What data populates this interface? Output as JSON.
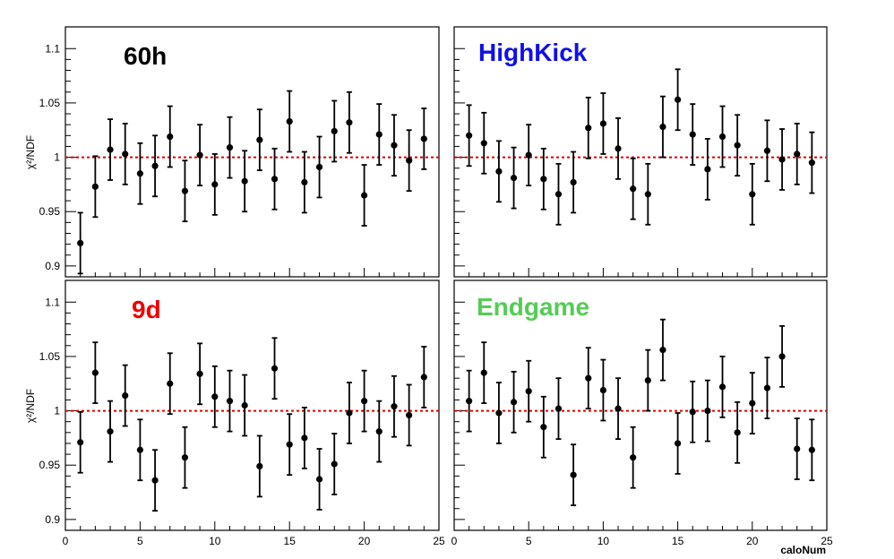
{
  "chart_data": [
    {
      "type": "scatter",
      "title": "60h",
      "title_color": "#000000",
      "ylabel": "χ²/NDF",
      "xlabel": "",
      "xlim": [
        0,
        25
      ],
      "ylim": [
        0.89,
        1.12
      ],
      "reference_line": {
        "y": 1,
        "color": "#e00000",
        "style": "dotted"
      },
      "x": [
        1,
        2,
        3,
        4,
        5,
        6,
        7,
        8,
        9,
        10,
        11,
        12,
        13,
        14,
        15,
        16,
        17,
        18,
        19,
        20,
        21,
        22,
        23,
        24
      ],
      "y": [
        0.921,
        0.973,
        1.007,
        1.003,
        0.985,
        0.992,
        1.019,
        0.969,
        1.002,
        0.975,
        1.009,
        0.978,
        1.016,
        0.98,
        1.033,
        0.977,
        0.991,
        1.024,
        1.032,
        0.965,
        1.021,
        1.011,
        0.997,
        1.017
      ],
      "err": [
        0.028,
        0.028,
        0.028,
        0.028,
        0.028,
        0.028,
        0.028,
        0.028,
        0.028,
        0.028,
        0.028,
        0.028,
        0.028,
        0.028,
        0.028,
        0.028,
        0.028,
        0.028,
        0.028,
        0.028,
        0.028,
        0.028,
        0.028,
        0.028
      ]
    },
    {
      "type": "scatter",
      "title": "HighKick",
      "title_color": "#1010e8",
      "ylabel": "",
      "xlabel": "caloNum",
      "xlim": [
        0,
        25
      ],
      "ylim": [
        0.89,
        1.12
      ],
      "reference_line": {
        "y": 1,
        "color": "#e00000",
        "style": "dotted"
      },
      "x": [
        1,
        2,
        3,
        4,
        5,
        6,
        7,
        8,
        9,
        10,
        11,
        12,
        13,
        14,
        15,
        16,
        17,
        18,
        19,
        20,
        21,
        22,
        23,
        24
      ],
      "y": [
        1.02,
        1.013,
        0.987,
        0.981,
        1.002,
        0.98,
        0.966,
        0.977,
        1.027,
        1.031,
        1.008,
        0.971,
        0.966,
        1.028,
        1.053,
        1.021,
        0.989,
        1.019,
        1.011,
        0.966,
        1.006,
        0.998,
        1.003,
        0.995
      ],
      "err": [
        0.028,
        0.028,
        0.028,
        0.028,
        0.028,
        0.028,
        0.028,
        0.028,
        0.028,
        0.028,
        0.028,
        0.028,
        0.028,
        0.028,
        0.028,
        0.028,
        0.028,
        0.028,
        0.028,
        0.028,
        0.028,
        0.028,
        0.028,
        0.028
      ]
    },
    {
      "type": "scatter",
      "title": "9d",
      "title_color": "#f00000",
      "ylabel": "χ²/NDF",
      "xlabel": "",
      "xlim": [
        0,
        25
      ],
      "ylim": [
        0.89,
        1.12
      ],
      "reference_line": {
        "y": 1,
        "color": "#e00000",
        "style": "dotted"
      },
      "x": [
        1,
        2,
        3,
        4,
        5,
        6,
        7,
        8,
        9,
        10,
        11,
        12,
        13,
        14,
        15,
        16,
        17,
        18,
        19,
        20,
        21,
        22,
        23,
        24
      ],
      "y": [
        0.971,
        1.035,
        0.981,
        1.014,
        0.964,
        0.936,
        1.025,
        0.957,
        1.034,
        1.013,
        1.009,
        1.005,
        0.949,
        1.039,
        0.969,
        0.975,
        0.937,
        0.951,
        0.998,
        1.009,
        0.981,
        1.004,
        0.996,
        1.031
      ],
      "err": [
        0.028,
        0.028,
        0.028,
        0.028,
        0.028,
        0.028,
        0.028,
        0.028,
        0.028,
        0.028,
        0.028,
        0.028,
        0.028,
        0.028,
        0.028,
        0.028,
        0.028,
        0.028,
        0.028,
        0.028,
        0.028,
        0.028,
        0.028,
        0.028
      ]
    },
    {
      "type": "scatter",
      "title": "Endgame",
      "title_color": "#55cc55",
      "ylabel": "",
      "xlabel": "caloNum",
      "xlim": [
        0,
        25
      ],
      "ylim": [
        0.89,
        1.12
      ],
      "reference_line": {
        "y": 1,
        "color": "#e00000",
        "style": "dotted"
      },
      "x": [
        1,
        2,
        3,
        4,
        5,
        6,
        7,
        8,
        9,
        10,
        11,
        12,
        13,
        14,
        15,
        16,
        17,
        18,
        19,
        20,
        21,
        22,
        23,
        24
      ],
      "y": [
        1.009,
        1.035,
        0.998,
        1.008,
        1.018,
        0.985,
        1.002,
        0.941,
        1.03,
        1.019,
        1.002,
        0.957,
        1.028,
        1.056,
        0.97,
        0.999,
        1.0,
        1.022,
        0.98,
        1.007,
        1.021,
        1.05,
        0.965,
        0.964
      ],
      "err": [
        0.028,
        0.028,
        0.028,
        0.028,
        0.028,
        0.028,
        0.028,
        0.028,
        0.028,
        0.028,
        0.028,
        0.028,
        0.028,
        0.028,
        0.028,
        0.028,
        0.028,
        0.028,
        0.028,
        0.028,
        0.028,
        0.028,
        0.028,
        0.028
      ]
    }
  ],
  "axes": {
    "y_ticks": [
      0.9,
      0.95,
      1,
      1.05,
      1.1
    ],
    "y_tick_labels": [
      "0.9",
      "0.95",
      "1",
      "1.05",
      "1.1"
    ],
    "x_ticks": [
      0,
      5,
      10,
      15,
      20,
      25
    ],
    "x_tick_labels": [
      "0",
      "5",
      "10",
      "15",
      "20",
      "25"
    ]
  }
}
